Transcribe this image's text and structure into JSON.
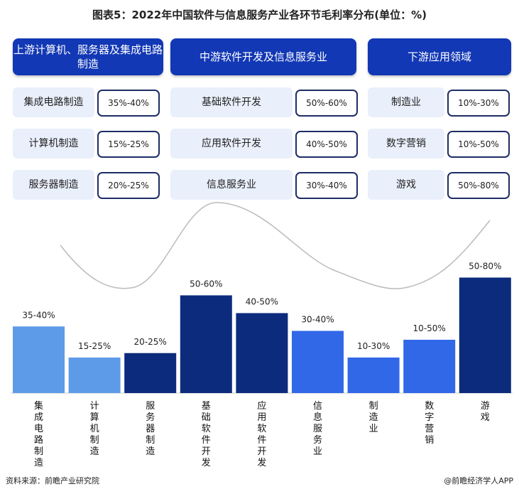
{
  "title": "图表5：2022年中国软件与信息服务产业各环节毛利率分布(单位：%)",
  "columns": [
    {
      "header": "上游计算机、服务器及集成电路制造",
      "items": [
        {
          "label": "集成电路制造",
          "value": "35%-40%"
        },
        {
          "label": "计算机制造",
          "value": "15%-25%"
        },
        {
          "label": "服务器制造",
          "value": "20%-25%"
        }
      ]
    },
    {
      "header": "中游软件开发及信息服务业",
      "items": [
        {
          "label": "基础软件开发",
          "value": "50%-60%"
        },
        {
          "label": "应用软件开发",
          "value": "40%-50%"
        },
        {
          "label": "信息服务业",
          "value": "30%-40%"
        }
      ]
    },
    {
      "header": "下游应用领域",
      "items": [
        {
          "label": "制造业",
          "value": "10%-30%"
        },
        {
          "label": "数字营销",
          "value": "10%-50%"
        },
        {
          "label": "游戏",
          "value": "50%-80%"
        }
      ]
    }
  ],
  "chart_data": {
    "type": "bar",
    "categories": [
      "集成电路制造",
      "计算机制造",
      "服务器制造",
      "基础软件开发",
      "应用软件开发",
      "信息服务业",
      "制造业",
      "数字营销",
      "游戏"
    ],
    "ranges": [
      [
        35,
        40
      ],
      [
        15,
        25
      ],
      [
        20,
        25
      ],
      [
        50,
        60
      ],
      [
        40,
        50
      ],
      [
        30,
        40
      ],
      [
        10,
        30
      ],
      [
        10,
        50
      ],
      [
        50,
        80
      ]
    ],
    "data_labels": [
      "35-40%",
      "15-25%",
      "20-25%",
      "50-60%",
      "40-50%",
      "30-40%",
      "10-30%",
      "10-50%",
      "50-80%"
    ],
    "colors": [
      "#5d9be8",
      "#5d9be8",
      "#0c2b7c",
      "#0c2b7c",
      "#0c2b7c",
      "#3068e8",
      "#3068e8",
      "#3068e8",
      "#0c2b7c"
    ],
    "grid": false
  },
  "footer": {
    "source": "资料来源：前瞻产业研究院",
    "brand": "@前瞻经济学人APP"
  }
}
